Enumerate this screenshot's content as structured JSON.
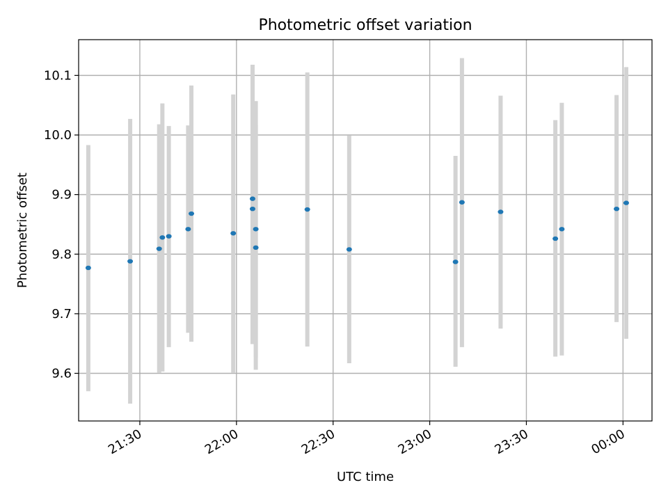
{
  "chart_data": {
    "type": "scatter",
    "title": "Photometric offset variation",
    "xlabel": "UTC time",
    "ylabel": "Photometric offset",
    "xlim": [
      "21:11",
      "00:09"
    ],
    "ylim": [
      9.52,
      10.16
    ],
    "grid": true,
    "xticks": [
      "21:30",
      "22:00",
      "22:30",
      "23:00",
      "23:30",
      "00:00"
    ],
    "yticks": [
      "9.6",
      "9.7",
      "9.8",
      "9.9",
      "10.0",
      "10.1"
    ],
    "colors": {
      "point": "#1f77b4",
      "errorbar": "#d3d3d3",
      "grid": "#b0b0b0"
    },
    "points": [
      {
        "time": "21:14",
        "y": 9.777,
        "ylow": 9.57,
        "yhigh": 9.983
      },
      {
        "time": "21:27",
        "y": 9.788,
        "ylow": 9.549,
        "yhigh": 10.027
      },
      {
        "time": "21:36",
        "y": 9.809,
        "ylow": 9.601,
        "yhigh": 10.018
      },
      {
        "time": "21:37",
        "y": 9.828,
        "ylow": 9.603,
        "yhigh": 10.053
      },
      {
        "time": "21:39",
        "y": 9.83,
        "ylow": 9.644,
        "yhigh": 10.015
      },
      {
        "time": "21:45",
        "y": 9.842,
        "ylow": 9.668,
        "yhigh": 10.016
      },
      {
        "time": "21:46",
        "y": 9.868,
        "ylow": 9.653,
        "yhigh": 10.083
      },
      {
        "time": "21:59",
        "y": 9.835,
        "ylow": 9.601,
        "yhigh": 10.068
      },
      {
        "time": "22:05",
        "y": 9.893,
        "ylow": 9.668,
        "yhigh": 10.118
      },
      {
        "time": "22:05",
        "y": 9.876,
        "ylow": 9.649,
        "yhigh": 10.103
      },
      {
        "time": "22:06",
        "y": 9.811,
        "ylow": 9.606,
        "yhigh": 10.016
      },
      {
        "time": "22:06",
        "y": 9.842,
        "ylow": 9.627,
        "yhigh": 10.057
      },
      {
        "time": "22:22",
        "y": 9.875,
        "ylow": 9.645,
        "yhigh": 10.105
      },
      {
        "time": "22:35",
        "y": 9.808,
        "ylow": 9.617,
        "yhigh": 9.999
      },
      {
        "time": "23:08",
        "y": 9.787,
        "ylow": 9.611,
        "yhigh": 9.965
      },
      {
        "time": "23:10",
        "y": 9.887,
        "ylow": 9.644,
        "yhigh": 10.129
      },
      {
        "time": "23:22",
        "y": 9.871,
        "ylow": 9.675,
        "yhigh": 10.066
      },
      {
        "time": "23:39",
        "y": 9.826,
        "ylow": 9.628,
        "yhigh": 10.025
      },
      {
        "time": "23:41",
        "y": 9.842,
        "ylow": 9.63,
        "yhigh": 10.054
      },
      {
        "time": "23:58",
        "y": 9.876,
        "ylow": 9.686,
        "yhigh": 10.067
      },
      {
        "time": "00:01",
        "y": 9.886,
        "ylow": 9.658,
        "yhigh": 10.114
      }
    ]
  }
}
